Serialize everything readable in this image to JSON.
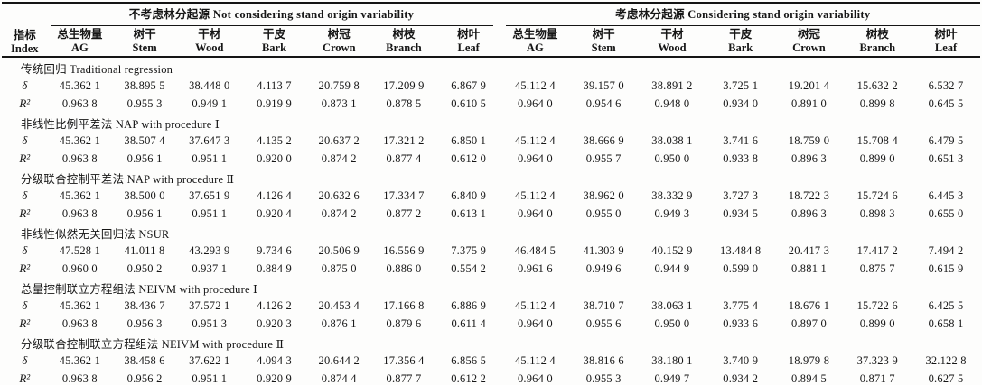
{
  "table": {
    "index_header": {
      "zh": "指标",
      "en": "Index"
    },
    "groups": [
      {
        "title": "不考虑林分起源 Not considering stand origin variability"
      },
      {
        "title": "考虑林分起源 Considering stand origin variability"
      }
    ],
    "columns": [
      {
        "zh": "总生物量",
        "en": "AG"
      },
      {
        "zh": "树干",
        "en": "Stem"
      },
      {
        "zh": "干材",
        "en": "Wood"
      },
      {
        "zh": "干皮",
        "en": "Bark"
      },
      {
        "zh": "树冠",
        "en": "Crown"
      },
      {
        "zh": "树枝",
        "en": "Branch"
      },
      {
        "zh": "树叶",
        "en": "Leaf"
      }
    ],
    "row_labels": {
      "delta": "δ",
      "r2": "R²"
    },
    "methods": [
      {
        "name": "传统回归 Traditional regression",
        "delta": [
          "45.362 1",
          "38.895 5",
          "38.448 0",
          "4.113 7",
          "20.759 8",
          "17.209 9",
          "6.867 9",
          "45.112 4",
          "39.157 0",
          "38.891 2",
          "3.725 1",
          "19.201 4",
          "15.632 2",
          "6.532 7"
        ],
        "r2": [
          "0.963 8",
          "0.955 3",
          "0.949 1",
          "0.919 9",
          "0.873 1",
          "0.878 5",
          "0.610 5",
          "0.964 0",
          "0.954 6",
          "0.948 0",
          "0.934 0",
          "0.891 0",
          "0.899 8",
          "0.645 5"
        ]
      },
      {
        "name": "非线性比例平差法 NAP with procedure Ⅰ",
        "delta": [
          "45.362 1",
          "38.507 4",
          "37.647 3",
          "4.135 2",
          "20.637 2",
          "17.321 2",
          "6.850 1",
          "45.112 4",
          "38.666 9",
          "38.038 1",
          "3.741 6",
          "18.759 0",
          "15.708 4",
          "6.479 5"
        ],
        "r2": [
          "0.963 8",
          "0.956 1",
          "0.951 1",
          "0.920 0",
          "0.874 2",
          "0.877 4",
          "0.612 0",
          "0.964 0",
          "0.955 7",
          "0.950 0",
          "0.933 8",
          "0.896 3",
          "0.899 0",
          "0.651 3"
        ]
      },
      {
        "name": "分级联合控制平差法 NAP with procedure Ⅱ",
        "delta": [
          "45.362 1",
          "38.500 0",
          "37.651 9",
          "4.126 4",
          "20.632 6",
          "17.334 7",
          "6.840 9",
          "45.112 4",
          "38.962 0",
          "38.332 9",
          "3.727 3",
          "18.722 3",
          "15.724 6",
          "6.445 3"
        ],
        "r2": [
          "0.963 8",
          "0.956 1",
          "0.951 1",
          "0.920 4",
          "0.874 2",
          "0.877 2",
          "0.613 1",
          "0.964 0",
          "0.955 0",
          "0.949 3",
          "0.934 5",
          "0.896 3",
          "0.898 3",
          "0.655 0"
        ]
      },
      {
        "name": "非线性似然无关回归法 NSUR",
        "delta": [
          "47.528 1",
          "41.011 8",
          "43.293 9",
          "9.734 6",
          "20.506 9",
          "16.556 9",
          "7.375 9",
          "46.484 5",
          "41.303 9",
          "40.152 9",
          "13.484 8",
          "20.417 3",
          "17.417 2",
          "7.494 2"
        ],
        "r2": [
          "0.960 0",
          "0.950 2",
          "0.937 1",
          "0.884 9",
          "0.875 0",
          "0.886 0",
          "0.554 2",
          "0.961 6",
          "0.949 6",
          "0.944 9",
          "0.599 0",
          "0.881 1",
          "0.875 7",
          "0.615 9"
        ]
      },
      {
        "name": "总量控制联立方程组法 NEIVM with procedure Ⅰ",
        "delta": [
          "45.362 1",
          "38.436 7",
          "37.572 1",
          "4.126 2",
          "20.453 4",
          "17.166 8",
          "6.886 9",
          "45.112 4",
          "38.710 7",
          "38.063 1",
          "3.775 4",
          "18.676 1",
          "15.722 6",
          "6.425 5"
        ],
        "r2": [
          "0.963 8",
          "0.956 3",
          "0.951 3",
          "0.920 3",
          "0.876 1",
          "0.879 6",
          "0.611 4",
          "0.964 0",
          "0.955 6",
          "0.950 0",
          "0.933 6",
          "0.897 0",
          "0.899 0",
          "0.658 1"
        ]
      },
      {
        "name": "分级联合控制联立方程组法 NEIVM with procedure Ⅱ",
        "delta": [
          "45.362 1",
          "38.458 6",
          "37.622 1",
          "4.094 3",
          "20.644 2",
          "17.356 4",
          "6.856 5",
          "45.112 4",
          "38.816 6",
          "38.180 1",
          "3.740 9",
          "18.979 8",
          "37.323 9",
          "32.122 8"
        ],
        "r2": [
          "0.963 8",
          "0.956 2",
          "0.951 1",
          "0.920 9",
          "0.874 4",
          "0.877 7",
          "0.612 2",
          "0.964 0",
          "0.955 3",
          "0.949 7",
          "0.934 2",
          "0.894 5",
          "0.871 7",
          "0.627 5"
        ]
      }
    ]
  }
}
